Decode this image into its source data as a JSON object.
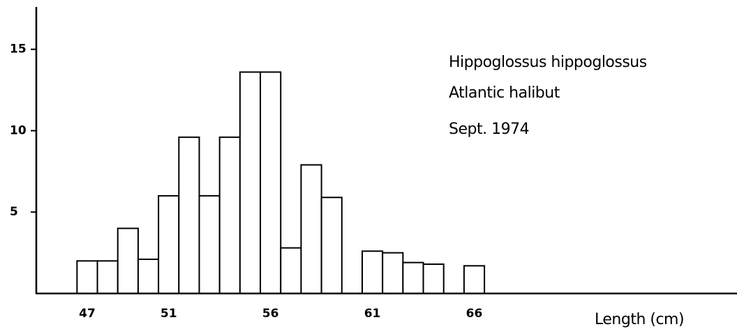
{
  "chart_data": {
    "type": "histogram",
    "annotations": [
      "Hippoglossus hippoglossus",
      "Atlantic halibut",
      "Sept. 1974"
    ],
    "x_label": "Length (cm)",
    "bins": [
      46.5,
      47.5,
      48.5,
      49.5,
      50.5,
      51.5,
      52.5,
      53.5,
      54.5,
      55.5,
      56.5,
      57.5,
      58.5,
      59.5,
      60.5,
      61.5,
      62.5,
      63.5,
      64.5,
      65.5,
      66.5
    ],
    "values": [
      2,
      2,
      4,
      2.1,
      6,
      9.6,
      6,
      9.6,
      13.6,
      13.6,
      2.8,
      7.9,
      5.9,
      0,
      2.6,
      2.5,
      1.9,
      1.8,
      0,
      1.7
    ],
    "color": "#ffffff",
    "xlim": [
      44.5,
      78.9
    ],
    "xticks": [
      47,
      51,
      56,
      61,
      66
    ],
    "ylim": [
      0,
      17.6
    ],
    "yticks": [
      5,
      10,
      15
    ]
  }
}
